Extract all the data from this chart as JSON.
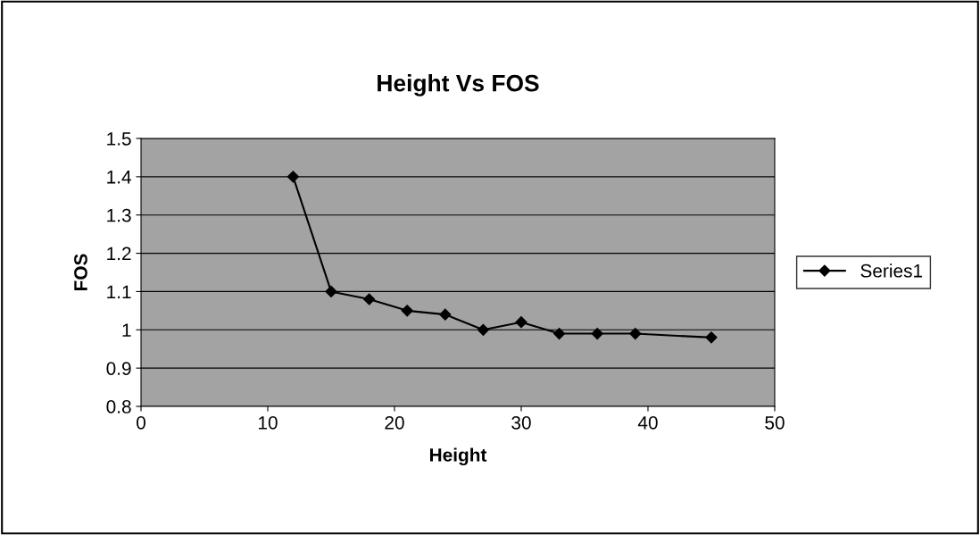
{
  "chart_data": {
    "type": "line",
    "title": "Height Vs FOS",
    "xlabel": "Height",
    "ylabel": "FOS",
    "x": [
      12,
      15,
      18,
      21,
      24,
      27,
      30,
      33,
      36,
      39,
      45
    ],
    "series": [
      {
        "name": "Series1",
        "color": "#000000",
        "values": [
          1.4,
          1.1,
          1.08,
          1.05,
          1.04,
          1.0,
          1.02,
          0.99,
          0.99,
          0.99,
          0.98
        ]
      }
    ],
    "xlim": [
      0,
      50
    ],
    "xticks": [
      0,
      10,
      20,
      30,
      40,
      50
    ],
    "ylim": [
      0.8,
      1.5
    ],
    "yticks": [
      {
        "value": 0.8,
        "label": "0.8"
      },
      {
        "value": 0.9,
        "label": "0.9"
      },
      {
        "value": 1.0,
        "label": "1"
      },
      {
        "value": 1.1,
        "label": "1.1"
      },
      {
        "value": 1.2,
        "label": "1.2"
      },
      {
        "value": 1.3,
        "label": "1.3"
      },
      {
        "value": 1.4,
        "label": "1.4"
      },
      {
        "value": 1.5,
        "label": "1.5"
      }
    ],
    "grid": "y",
    "legend": "right",
    "marker": "diamond",
    "line_style": "solid"
  }
}
